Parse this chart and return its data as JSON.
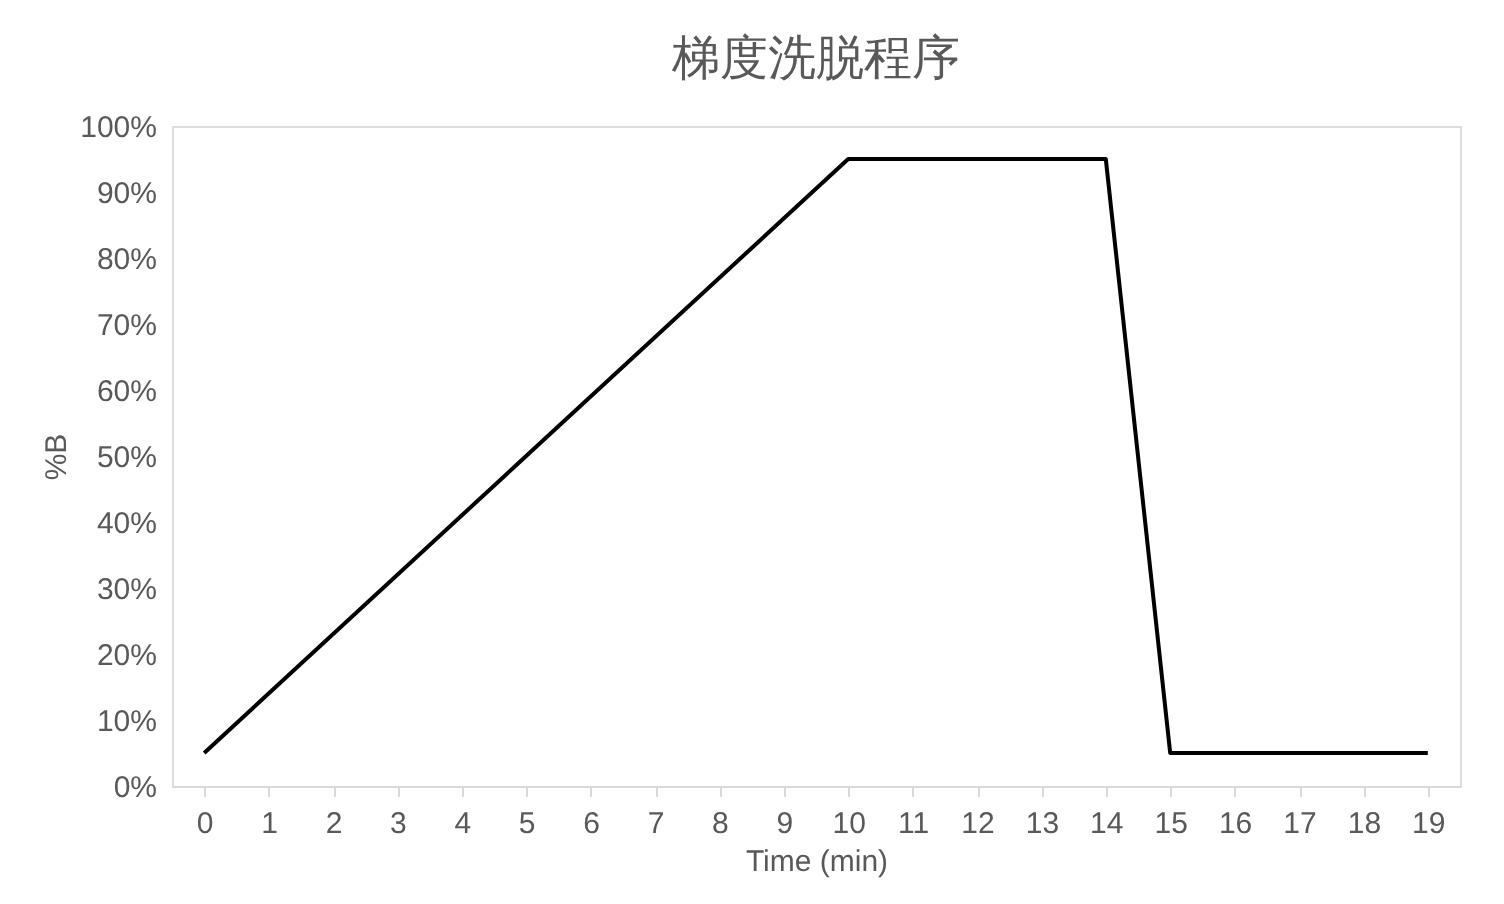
{
  "chart_data": {
    "type": "line",
    "title": "梯度洗脱程序",
    "xlabel": "Time (min)",
    "ylabel": "%B",
    "x": [
      0,
      10,
      14,
      15,
      19
    ],
    "series": [
      {
        "color": "#000000",
        "values": [
          5,
          95,
          95,
          5,
          5
        ]
      }
    ],
    "xlim": [
      -0.5,
      19.5
    ],
    "xticks": [
      0,
      1,
      2,
      3,
      4,
      5,
      6,
      7,
      8,
      9,
      10,
      11,
      12,
      13,
      14,
      15,
      16,
      17,
      18,
      19
    ],
    "ylim": [
      0,
      100
    ],
    "yticks": [
      {
        "value": 0,
        "label": "0%"
      },
      {
        "value": 10,
        "label": "10%"
      },
      {
        "value": 20,
        "label": "20%"
      },
      {
        "value": 30,
        "label": "30%"
      },
      {
        "value": 40,
        "label": "40%"
      },
      {
        "value": 50,
        "label": "50%"
      },
      {
        "value": 60,
        "label": "60%"
      },
      {
        "value": 70,
        "label": "70%"
      },
      {
        "value": 80,
        "label": "80%"
      },
      {
        "value": 90,
        "label": "90%"
      },
      {
        "value": 100,
        "label": "100%"
      }
    ],
    "grid": false,
    "marker": "none",
    "line_style": "solid"
  }
}
